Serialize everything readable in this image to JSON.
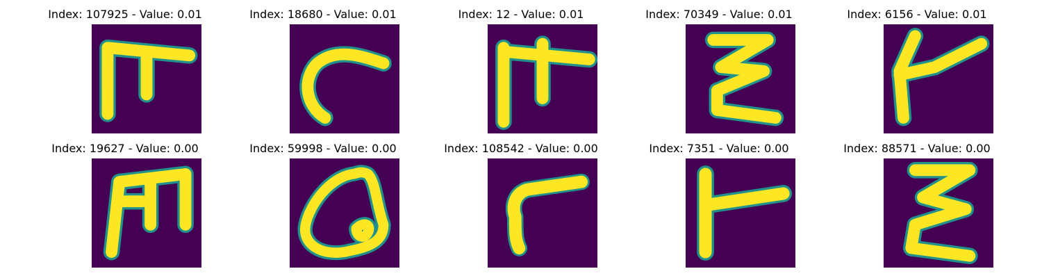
{
  "colors": {
    "background": "#440154",
    "stroke": "#fde725",
    "edge": "#21918c",
    "edge2": "#3b528b",
    "edge3": "#5ec962"
  },
  "panels": [
    {
      "title": "Index: 107925 - Value: 0.01",
      "glyph": "lower-t-ligature-icon"
    },
    {
      "title": "Index: 18680 - Value: 0.01",
      "glyph": "hook-curve-icon"
    },
    {
      "title": "Index: 12 - Value: 0.01",
      "glyph": "cross-bar-glyph-icon"
    },
    {
      "title": "Index: 70349 - Value: 0.01",
      "glyph": "epsilon-glyph-icon"
    },
    {
      "title": "Index: 6156 - Value: 0.01",
      "glyph": "stem-branch-glyph-icon"
    },
    {
      "title": "Index: 19627 - Value: 0.00",
      "glyph": "m-shape-glyph-icon"
    },
    {
      "title": "Index: 59998 - Value: 0.00",
      "glyph": "loop-glyph-icon"
    },
    {
      "title": "Index: 108542 - Value: 0.00",
      "glyph": "gamma-curve-glyph-icon"
    },
    {
      "title": "Index: 7351 - Value: 0.00",
      "glyph": "t-branch-glyph-icon"
    },
    {
      "title": "Index: 88571 - Value: 0.00",
      "glyph": "epsilon-glyph-icon"
    }
  ]
}
